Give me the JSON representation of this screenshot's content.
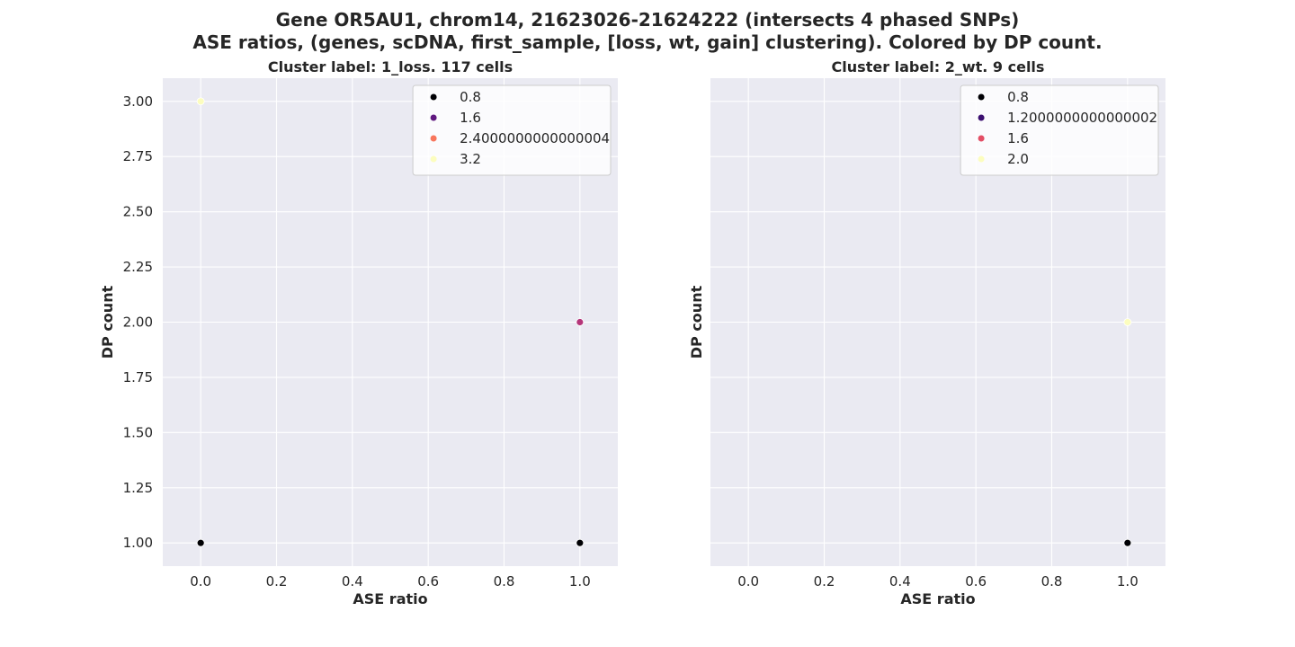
{
  "suptitle_line1": "Gene OR5AU1, chrom14, 21623026-21624222 (intersects 4 phased SNPs)",
  "suptitle_line2": "ASE ratios, (genes, scDNA, first_sample, [loss, wt, gain] clustering). Colored by DP count.",
  "colors": {
    "axes_background": "#eaeaf2",
    "grid": "#ffffff",
    "text": "#262626",
    "legend_background": "#ffffff"
  },
  "chart_data": [
    {
      "type": "scatter",
      "title": "Cluster label: 1_loss. 117 cells",
      "xlabel": "ASE ratio",
      "ylabel": "DP count",
      "xlim": [
        -0.1,
        1.1
      ],
      "ylim": [
        0.895,
        3.105
      ],
      "xticks": [
        "0.0",
        "0.2",
        "0.4",
        "0.6",
        "0.8",
        "1.0"
      ],
      "xtick_values": [
        0.0,
        0.2,
        0.4,
        0.6,
        0.8,
        1.0
      ],
      "yticks": [
        "1.00",
        "1.25",
        "1.50",
        "1.75",
        "2.00",
        "2.25",
        "2.50",
        "2.75",
        "3.00"
      ],
      "ytick_values": [
        1.0,
        1.25,
        1.5,
        1.75,
        2.0,
        2.25,
        2.5,
        2.75,
        3.0
      ],
      "show_yticklabels": true,
      "grid": true,
      "legend_location": "upper right",
      "legend": [
        {
          "label": "0.8",
          "color": "#000004"
        },
        {
          "label": "1.6",
          "color": "#5f187f"
        },
        {
          "label": "2.4000000000000004",
          "color": "#f8765c"
        },
        {
          "label": "3.2",
          "color": "#fcfdbf"
        }
      ],
      "points": [
        {
          "x": 0.0,
          "y": 3.0,
          "color": "#fcfdbf"
        },
        {
          "x": 1.0,
          "y": 2.0,
          "color": "#b5367a"
        },
        {
          "x": 0.0,
          "y": 1.0,
          "color": "#000004"
        },
        {
          "x": 1.0,
          "y": 1.0,
          "color": "#000004"
        }
      ]
    },
    {
      "type": "scatter",
      "title": "Cluster label: 2_wt. 9 cells",
      "xlabel": "ASE ratio",
      "ylabel": "DP count",
      "xlim": [
        -0.1,
        1.1
      ],
      "ylim": [
        0.895,
        3.105
      ],
      "xticks": [
        "0.0",
        "0.2",
        "0.4",
        "0.6",
        "0.8",
        "1.0"
      ],
      "xtick_values": [
        0.0,
        0.2,
        0.4,
        0.6,
        0.8,
        1.0
      ],
      "yticks": [],
      "ytick_values": [
        1.0,
        1.25,
        1.5,
        1.75,
        2.0,
        2.25,
        2.5,
        2.75,
        3.0
      ],
      "show_yticklabels": false,
      "grid": true,
      "legend_location": "upper right",
      "legend": [
        {
          "label": "0.8",
          "color": "#000004"
        },
        {
          "label": "1.2000000000000002",
          "color": "#3b0f70"
        },
        {
          "label": "1.6",
          "color": "#e34e65"
        },
        {
          "label": "2.0",
          "color": "#fcfdbf"
        }
      ],
      "points": [
        {
          "x": 1.0,
          "y": 2.0,
          "color": "#fcfdbf"
        },
        {
          "x": 1.0,
          "y": 1.0,
          "color": "#000004"
        }
      ]
    }
  ]
}
